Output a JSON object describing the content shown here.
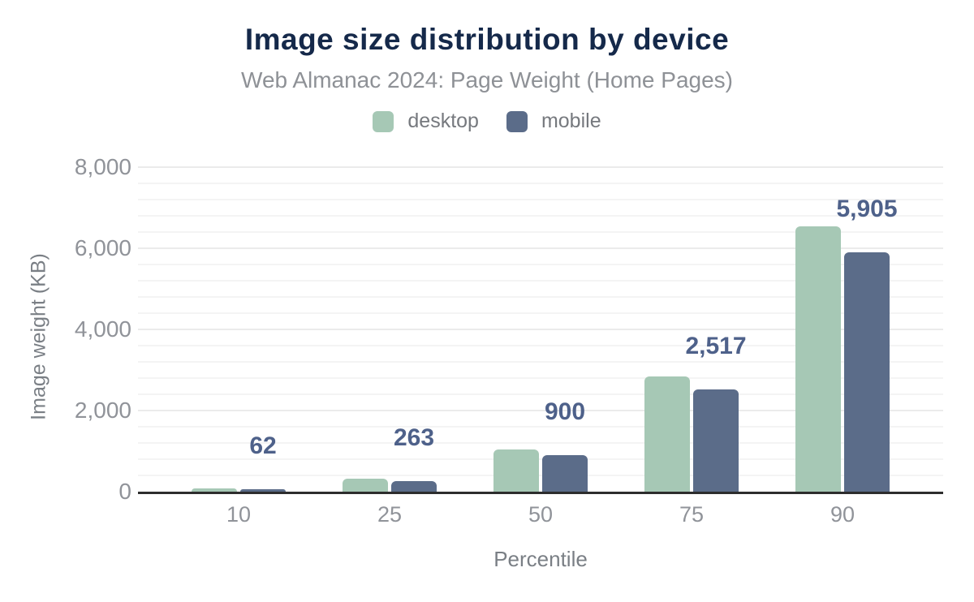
{
  "chart_data": {
    "type": "bar",
    "title": "Image size distribution by device",
    "subtitle": "Web Almanac 2024: Page Weight (Home Pages)",
    "xlabel": "Percentile",
    "ylabel": "Image weight (KB)",
    "categories": [
      "10",
      "25",
      "50",
      "75",
      "90"
    ],
    "series": [
      {
        "name": "desktop",
        "color": "#a6c8b5",
        "values": [
          86,
          316,
          1040,
          2840,
          6550
        ]
      },
      {
        "name": "mobile",
        "color": "#5b6c89",
        "values": [
          62,
          263,
          900,
          2517,
          5905
        ]
      }
    ],
    "data_labels": {
      "series": "mobile",
      "text": [
        "62",
        "263",
        "900",
        "2,517",
        "5,905"
      ]
    },
    "y_axis": {
      "min": 0,
      "max": 8000,
      "ticks": [
        {
          "value": 0,
          "label": "0"
        },
        {
          "value": 2000,
          "label": "2,000"
        },
        {
          "value": 4000,
          "label": "4,000"
        },
        {
          "value": 6000,
          "label": "6,000"
        },
        {
          "value": 8000,
          "label": "8,000"
        }
      ],
      "minor_grid_step": 400
    },
    "legend_position": "top",
    "grid": "on"
  },
  "style": {
    "background": "#ffffff",
    "title_color": "#15294a",
    "subtitle_color": "#8e9196",
    "legend_text_color": "#76797e",
    "tick_color": "#909399",
    "axis_title_color": "#7a7f85",
    "value_label_color": "#4e618a",
    "axis_line_color": "#2d2d2d",
    "grid_minor_color": "#f4f4f4",
    "grid_major_color": "#ebebeb"
  }
}
